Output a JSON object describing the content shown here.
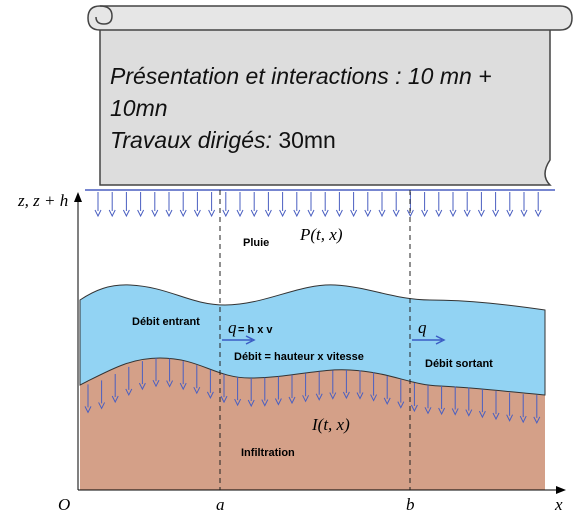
{
  "scroll": {
    "line1": "Présentation et interactions : 10 mn + 10mn",
    "line2_italic": "Travaux dirigés:",
    "line2_normal": "30mn"
  },
  "diagram": {
    "axis_z": "z, z + h",
    "rain_symbol": "P(t, x)",
    "rain_label": "Pluie",
    "inflow": "Débit entrant",
    "q_left": "q",
    "q_formula": "= h x v",
    "flow_formula": "Débit = hauteur x vitesse",
    "q_right": "q",
    "outflow": "Débit sortant",
    "infiltration_symbol": "I(t, x)",
    "infiltration_label": "Infiltration",
    "origin": "O",
    "a": "a",
    "b": "b",
    "x": "x"
  }
}
